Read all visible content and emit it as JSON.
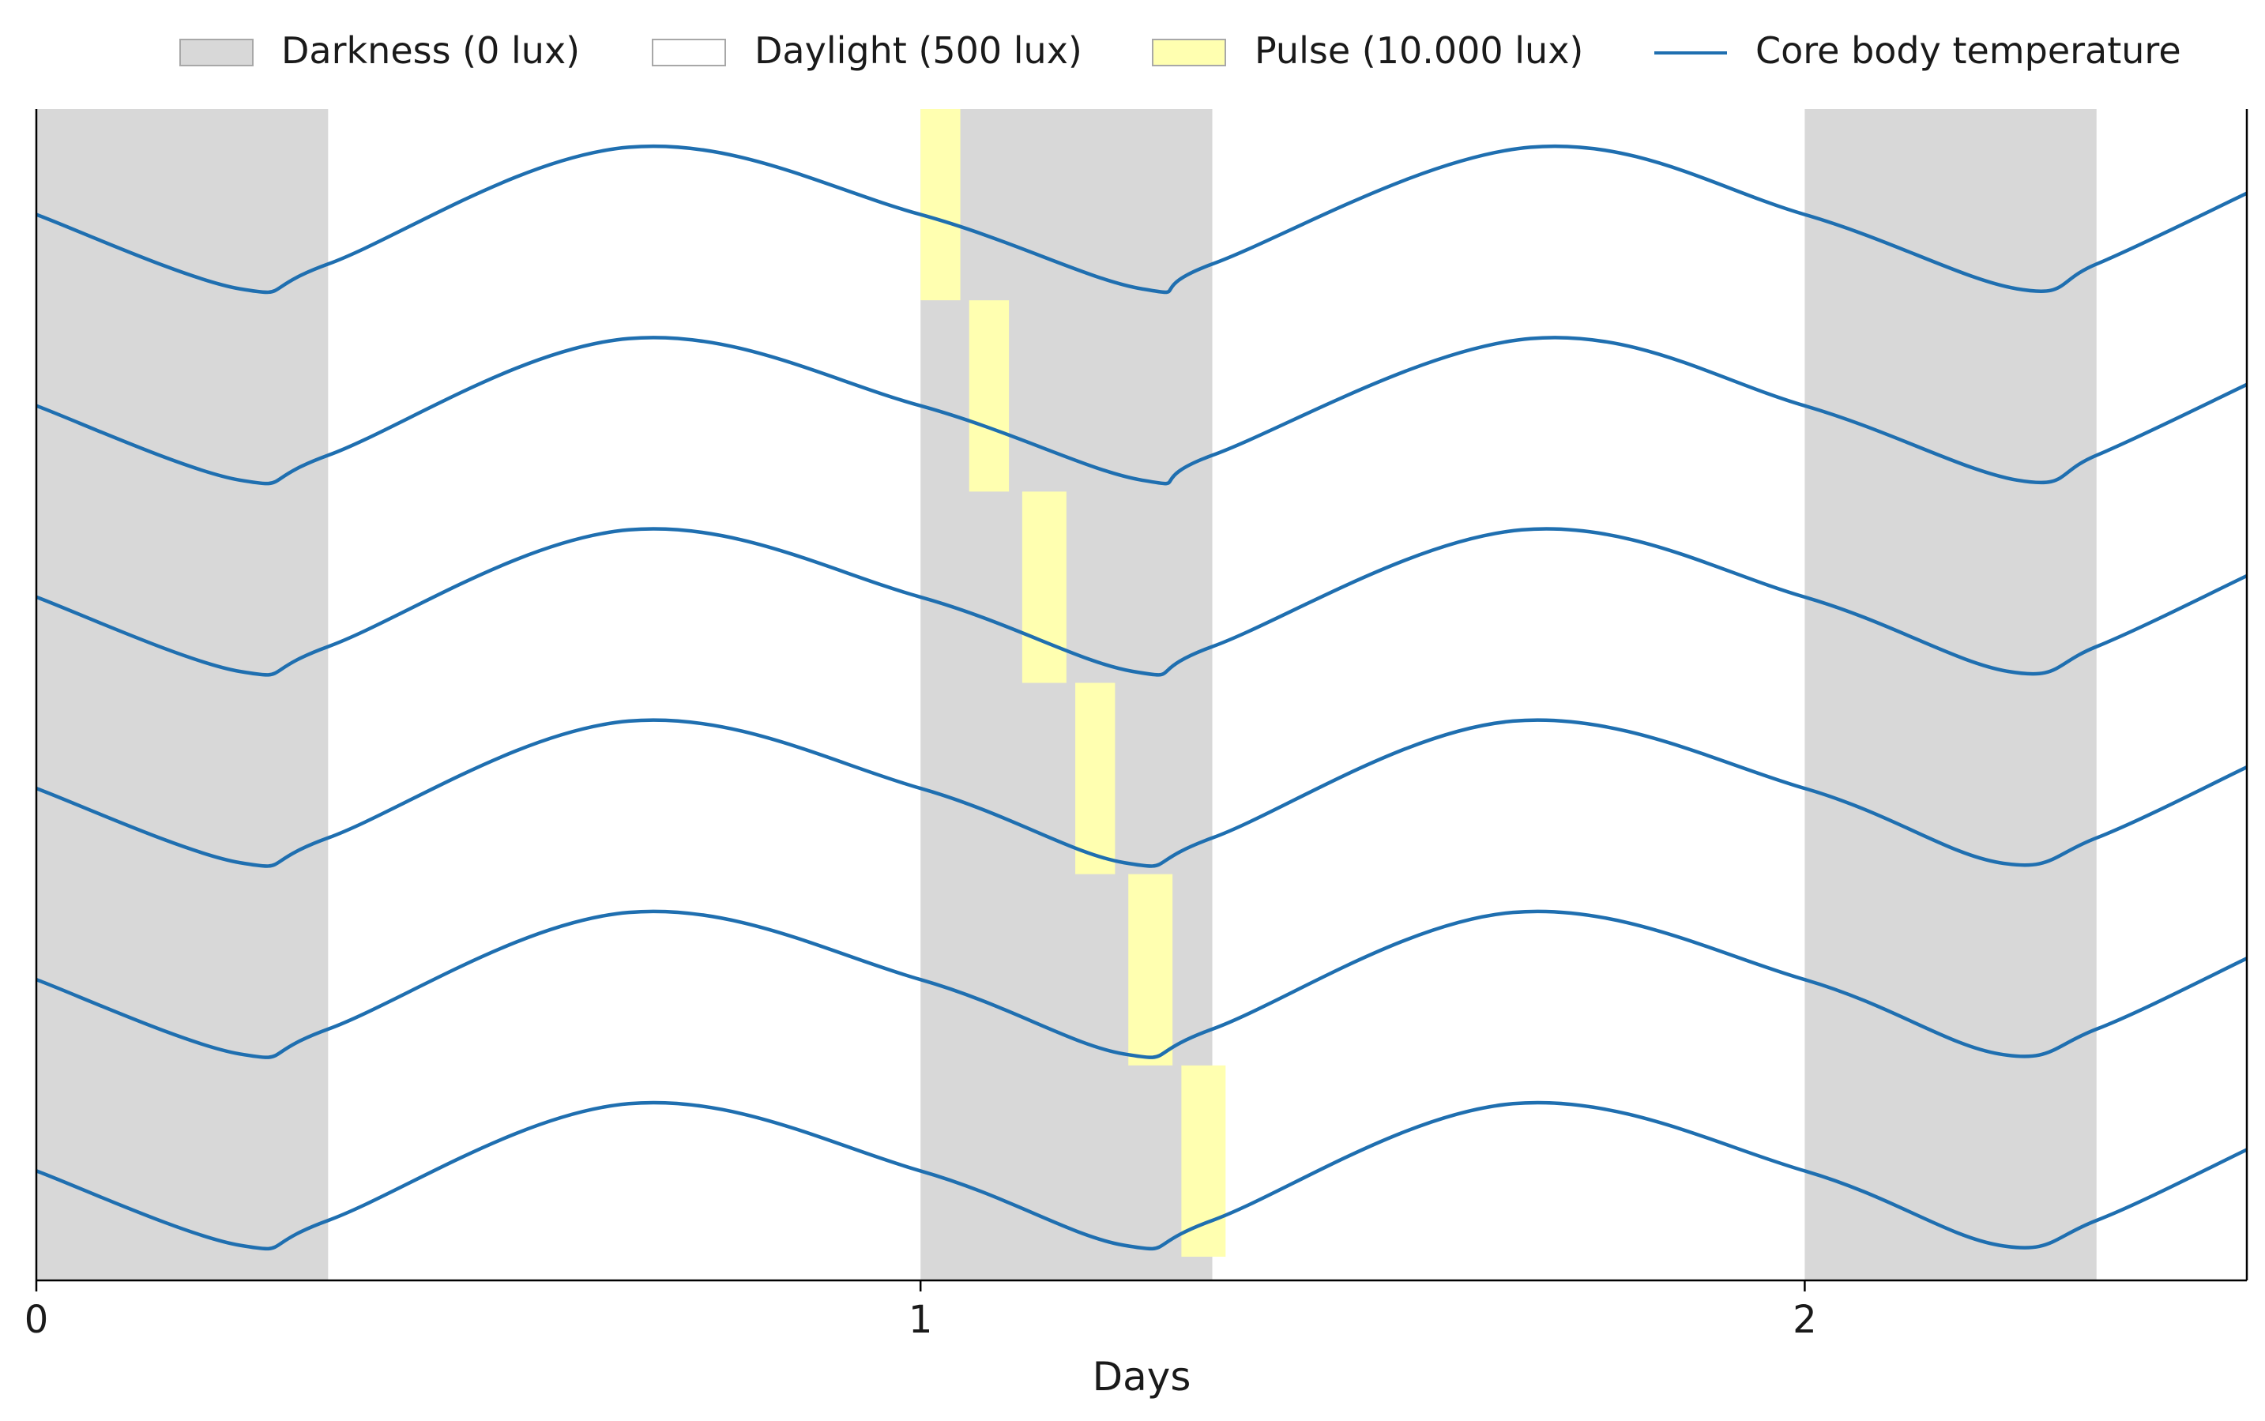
{
  "chart_data": {
    "type": "line",
    "title": "",
    "xlabel": "Days",
    "ylabel": "",
    "xlim": [
      0,
      2.5
    ],
    "x_ticks": [
      0,
      1,
      2
    ],
    "x_tick_labels": [
      "0",
      "1",
      "2"
    ],
    "y_ticks_shown": false,
    "grid": false,
    "legend_placement": "top",
    "legend": [
      {
        "label": "Darkness (0 lux)",
        "kind": "patch",
        "color": "#d8d8d8"
      },
      {
        "label": "Daylight (500 lux)",
        "kind": "patch",
        "color": "#ffffff"
      },
      {
        "label": "Pulse (10.000 lux)",
        "kind": "patch",
        "color": "#ffffb0"
      },
      {
        "label": "Core body temperature",
        "kind": "line",
        "color": "#1f6fb0"
      }
    ],
    "darkness_intervals_days": [
      [
        0.0,
        0.33
      ],
      [
        1.0,
        1.33
      ],
      [
        2.0,
        2.33
      ]
    ],
    "rows": [
      {
        "pulse_days": [
          1.0,
          1.045
        ],
        "trough_day": 1.25,
        "next_peak_day": 1.69,
        "next_trough_day": 2.24
      },
      {
        "pulse_days": [
          1.055,
          1.1
        ],
        "trough_day": 1.25,
        "next_peak_day": 1.69,
        "next_trough_day": 2.24
      },
      {
        "pulse_days": [
          1.115,
          1.165
        ],
        "trough_day": 1.24,
        "next_peak_day": 1.68,
        "next_trough_day": 2.23
      },
      {
        "pulse_days": [
          1.175,
          1.22
        ],
        "trough_day": 1.23,
        "next_peak_day": 1.67,
        "next_trough_day": 2.22
      },
      {
        "pulse_days": [
          1.235,
          1.285
        ],
        "trough_day": 1.23,
        "next_peak_day": 1.67,
        "next_trough_day": 2.22
      },
      {
        "pulse_days": [
          1.295,
          1.345
        ],
        "trough_day": 1.23,
        "next_peak_day": 1.67,
        "next_trough_day": 2.22
      }
    ],
    "first_trough_day": 0.23,
    "first_peak_day": 0.67,
    "colors": {
      "darkness": "#d8d8d8",
      "pulse": "#ffffb0",
      "line": "#1f6fb0",
      "axis": "#000000"
    }
  }
}
